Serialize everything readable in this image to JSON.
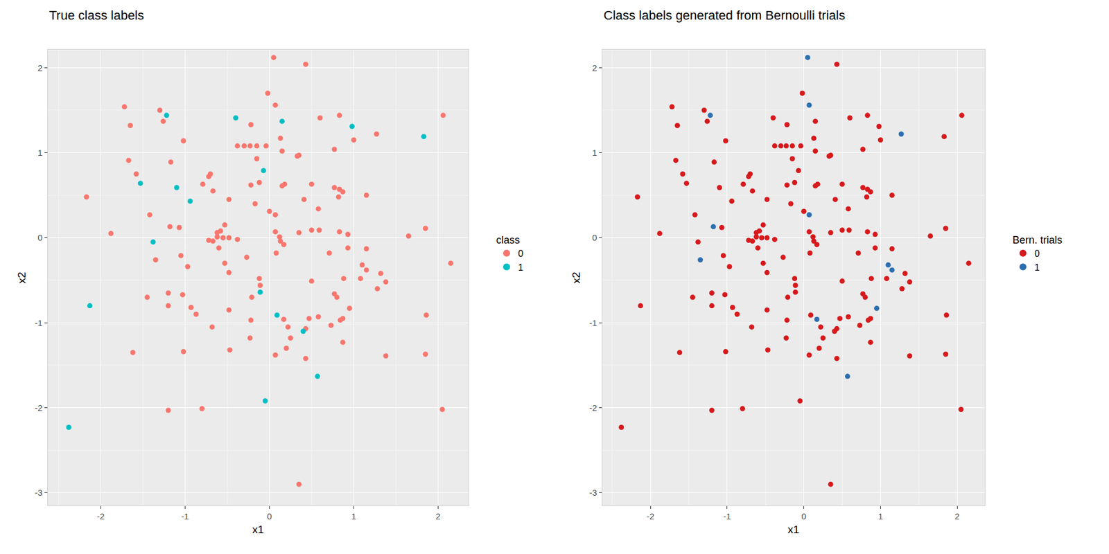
{
  "chart_data": [
    {
      "type": "scatter",
      "title": "True class labels",
      "x_label": "x1",
      "y_label": "x2",
      "legend_title": "class",
      "legend": "right",
      "grid": true,
      "xlim": [
        -2.63,
        2.36
      ],
      "ylim": [
        -3.15,
        2.21
      ],
      "xticks": [
        -2,
        -1,
        0,
        1,
        2
      ],
      "yticks": [
        -3,
        -2,
        -1,
        0,
        1,
        2
      ],
      "series": [
        {
          "name": "0",
          "color": "#F8766D",
          "marker": "circle",
          "x": [
            0.05,
            0.43,
            -1.72,
            -1.3,
            -1.26,
            -1.65,
            -0.02,
            0.07,
            0.6,
            0.83,
            2.06,
            1.27,
            1.0,
            -1.02,
            0.13,
            -0.38,
            -0.3,
            -0.23,
            -0.15,
            -0.04,
            0.15,
            0.35,
            0.33,
            0.77,
            -1.67,
            -0.22,
            -0.15,
            -1.58,
            -1.17,
            -0.79,
            -0.72,
            -0.7,
            -0.67,
            -0.22,
            -0.12,
            0.15,
            0.18,
            0.5,
            0.77,
            0.83,
            0.87,
            0.82,
            1.15,
            -2.17,
            -0.17,
            -0.48,
            0.41,
            -1.42,
            -1.18,
            -1.07,
            0.0,
            0.07,
            0.58,
            -0.53,
            -0.58,
            -0.62,
            -0.62,
            -0.55,
            -0.48,
            -0.67,
            -0.72,
            -0.38,
            0.07,
            0.12,
            0.35,
            0.5,
            0.59,
            0.83,
            0.93,
            1.65,
            1.85,
            -1.88,
            -1.35,
            -0.6,
            -0.53,
            -0.97,
            -1.05,
            -0.27,
            0.13,
            0.17,
            0.08,
            0.71,
            0.93,
            1.15,
            1.1,
            1.15,
            1.32,
            1.38,
            2.15,
            -1.45,
            -0.48,
            -0.12,
            0.88,
            0.5,
            1.08,
            1.28,
            -1.2,
            -1.2,
            -1.03,
            -0.93,
            -0.87,
            -0.21,
            -0.11,
            0.77,
            0.8,
            0.95,
            0.87,
            0.84,
            0.58,
            0.47,
            0.17,
            0.22,
            -0.22,
            -0.68,
            -0.48,
            0.43,
            0.73,
            1.86,
            -1.62,
            -1.02,
            -0.47,
            -0.23,
            0.07,
            0.25,
            0.2,
            0.43,
            0.87,
            1.38,
            1.85,
            -1.2,
            -0.8,
            2.05,
            0.35
          ],
          "y": [
            2.12,
            2.04,
            1.54,
            1.5,
            1.37,
            1.32,
            1.7,
            1.56,
            1.41,
            1.44,
            1.44,
            1.22,
            1.15,
            1.14,
            1.17,
            1.08,
            1.08,
            1.08,
            1.08,
            1.08,
            1.02,
            0.97,
            0.96,
            1.04,
            0.91,
            1.33,
            0.93,
            0.75,
            0.89,
            0.63,
            0.72,
            0.75,
            0.55,
            0.62,
            0.65,
            0.61,
            0.63,
            0.63,
            0.59,
            0.57,
            0.54,
            0.48,
            0.5,
            0.48,
            0.4,
            0.45,
            0.45,
            0.27,
            0.13,
            0.12,
            0.31,
            0.27,
            0.34,
            0.15,
            0.08,
            0.06,
            0.01,
            0.0,
            0.0,
            -0.04,
            -0.03,
            -0.02,
            0.07,
            0.01,
            0.06,
            0.09,
            0.09,
            0.07,
            0.04,
            0.02,
            0.11,
            0.05,
            -0.26,
            -0.12,
            -0.3,
            -0.34,
            -0.21,
            -0.23,
            -0.04,
            -0.08,
            -0.18,
            -0.18,
            -0.12,
            -0.13,
            -0.32,
            -0.38,
            -0.42,
            -0.52,
            -0.3,
            -0.7,
            -0.41,
            -0.48,
            -0.48,
            -0.51,
            -0.48,
            -0.6,
            -0.65,
            -0.8,
            -0.67,
            -0.82,
            -0.9,
            -0.7,
            -0.56,
            -0.66,
            -0.7,
            -0.83,
            -0.95,
            -0.97,
            -0.93,
            -0.95,
            -0.96,
            -1.05,
            -0.97,
            -1.05,
            -0.85,
            -1.07,
            -1.03,
            -0.91,
            -1.35,
            -1.34,
            -1.32,
            -1.18,
            -1.38,
            -1.18,
            -1.3,
            -1.42,
            -1.23,
            -1.39,
            -1.37,
            -2.03,
            -2.01,
            -2.02,
            -2.9
          ]
        },
        {
          "name": "1",
          "color": "#00BFC4",
          "marker": "circle",
          "x": [
            -1.22,
            -0.4,
            0.15,
            0.98,
            1.83,
            -1.53,
            -1.1,
            -0.94,
            -0.07,
            -1.38,
            -0.11,
            0.09,
            0.4,
            -2.13,
            0.57,
            -0.05,
            -2.38
          ],
          "y": [
            1.44,
            1.41,
            1.37,
            1.31,
            1.19,
            0.64,
            0.59,
            0.43,
            0.79,
            -0.05,
            -0.64,
            -0.91,
            -1.1,
            -0.8,
            -1.63,
            -1.92,
            -2.23
          ]
        }
      ]
    },
    {
      "type": "scatter",
      "title": "Class labels generated from Bernoulli trials",
      "x_label": "x1",
      "y_label": "x2",
      "legend_title": "Bern. trials",
      "legend": "right",
      "grid": true,
      "xlim": [
        -2.63,
        2.36
      ],
      "ylim": [
        -3.15,
        2.21
      ],
      "xticks": [
        -2,
        -1,
        0,
        1,
        2
      ],
      "yticks": [
        -3,
        -2,
        -1,
        0,
        1,
        2
      ],
      "series": [
        {
          "name": "0",
          "color": "#D7191C",
          "marker": "circle",
          "x": [
            0.43,
            -1.72,
            -1.3,
            -1.26,
            -1.65,
            -0.02,
            0.6,
            0.83,
            2.06,
            1.0,
            -1.02,
            0.13,
            -0.38,
            -0.3,
            -0.23,
            -0.15,
            -0.04,
            0.15,
            0.35,
            0.33,
            0.77,
            -1.67,
            -0.22,
            -0.15,
            -1.58,
            -1.17,
            -0.79,
            -0.72,
            -0.7,
            -0.67,
            -0.22,
            -0.12,
            0.15,
            0.18,
            0.5,
            0.77,
            0.83,
            0.87,
            0.82,
            1.15,
            -2.17,
            -0.17,
            -0.48,
            0.41,
            -1.42,
            -1.07,
            0.0,
            0.58,
            -0.53,
            -0.58,
            -0.62,
            -0.62,
            -0.55,
            -0.48,
            -0.67,
            -0.72,
            -0.38,
            0.07,
            0.12,
            0.35,
            0.5,
            0.59,
            0.83,
            0.93,
            1.65,
            1.85,
            -1.88,
            -0.6,
            -0.53,
            -0.97,
            -1.05,
            -0.27,
            0.13,
            0.17,
            0.08,
            0.71,
            0.93,
            1.15,
            1.32,
            1.38,
            2.15,
            -1.45,
            -0.48,
            -0.12,
            0.88,
            0.5,
            1.08,
            1.28,
            -1.2,
            -1.2,
            -1.03,
            -0.93,
            -0.87,
            -0.21,
            -0.11,
            0.77,
            0.8,
            0.87,
            0.84,
            0.58,
            0.47,
            0.22,
            -0.22,
            -0.68,
            -0.48,
            0.43,
            0.73,
            1.86,
            -1.62,
            -1.02,
            -0.47,
            -0.23,
            0.07,
            0.25,
            0.2,
            0.43,
            0.87,
            1.38,
            1.85,
            -1.2,
            -0.8,
            2.05,
            0.35,
            -0.4,
            0.15,
            0.98,
            1.83,
            -1.53,
            -1.1,
            -0.94,
            -0.07,
            -1.38,
            -0.11,
            0.09,
            0.4,
            -2.13,
            -0.05,
            -2.38
          ],
          "y": [
            2.04,
            1.54,
            1.5,
            1.37,
            1.32,
            1.7,
            1.41,
            1.44,
            1.44,
            1.15,
            1.14,
            1.17,
            1.08,
            1.08,
            1.08,
            1.08,
            1.08,
            1.02,
            0.97,
            0.96,
            1.04,
            0.91,
            1.33,
            0.93,
            0.75,
            0.89,
            0.63,
            0.72,
            0.75,
            0.55,
            0.62,
            0.65,
            0.61,
            0.63,
            0.63,
            0.59,
            0.57,
            0.54,
            0.48,
            0.5,
            0.48,
            0.4,
            0.45,
            0.45,
            0.27,
            0.12,
            0.31,
            0.34,
            0.15,
            0.08,
            0.06,
            0.01,
            0.0,
            0.0,
            -0.04,
            -0.03,
            -0.02,
            0.07,
            0.01,
            0.06,
            0.09,
            0.09,
            0.07,
            0.04,
            0.02,
            0.11,
            0.05,
            -0.12,
            -0.3,
            -0.34,
            -0.21,
            -0.23,
            -0.04,
            -0.08,
            -0.18,
            -0.18,
            -0.12,
            -0.13,
            -0.42,
            -0.52,
            -0.3,
            -0.7,
            -0.41,
            -0.48,
            -0.48,
            -0.51,
            -0.48,
            -0.6,
            -0.65,
            -0.8,
            -0.67,
            -0.82,
            -0.9,
            -0.7,
            -0.56,
            -0.66,
            -0.7,
            -0.95,
            -0.97,
            -0.93,
            -0.95,
            -1.05,
            -0.97,
            -1.05,
            -0.85,
            -1.07,
            -1.03,
            -0.91,
            -1.35,
            -1.34,
            -1.32,
            -1.18,
            -1.38,
            -1.18,
            -1.3,
            -1.42,
            -1.23,
            -1.39,
            -1.37,
            -2.03,
            -2.01,
            -2.02,
            -2.9,
            1.41,
            1.37,
            1.31,
            1.19,
            0.64,
            0.59,
            0.43,
            0.79,
            -0.05,
            -0.64,
            -0.91,
            -1.1,
            -0.8,
            -1.92,
            -2.23
          ]
        },
        {
          "name": "1",
          "color": "#2C6FB0",
          "marker": "circle",
          "x": [
            0.05,
            0.07,
            -1.22,
            1.27,
            0.07,
            -1.18,
            -1.35,
            1.1,
            1.15,
            0.17,
            0.95,
            0.57
          ],
          "y": [
            2.12,
            1.56,
            1.44,
            1.22,
            0.27,
            0.13,
            -0.26,
            -0.32,
            -0.38,
            -0.96,
            -0.83,
            -1.63
          ]
        }
      ]
    }
  ]
}
